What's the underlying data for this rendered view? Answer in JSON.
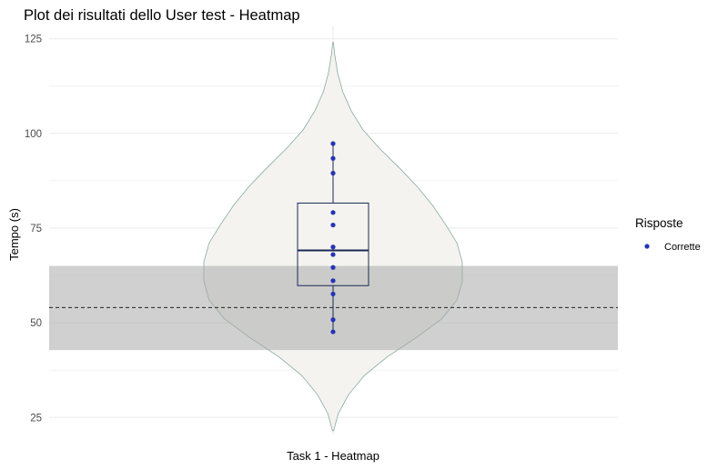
{
  "chart_data": {
    "type": "violin",
    "title": "Plot dei risultati dello User test - Heatmap",
    "xlabel": "",
    "ylabel": "Tempo (s)",
    "categories": [
      "Task 1 - Heatmap"
    ],
    "y_ticks": [
      25,
      50,
      75,
      100,
      125
    ],
    "ylim": [
      20.5,
      128.5
    ],
    "grid": true,
    "legend": {
      "title": "Risposte",
      "position": "right",
      "entries": [
        {
          "label": "Corrette",
          "color": "#2233bb"
        }
      ]
    },
    "points": [
      {
        "category": "Task 1 - Heatmap",
        "y": 97.3,
        "response": "Corrette"
      },
      {
        "category": "Task 1 - Heatmap",
        "y": 93.4,
        "response": "Corrette"
      },
      {
        "category": "Task 1 - Heatmap",
        "y": 89.5,
        "response": "Corrette"
      },
      {
        "category": "Task 1 - Heatmap",
        "y": 79.1,
        "response": "Corrette"
      },
      {
        "category": "Task 1 - Heatmap",
        "y": 75.8,
        "response": "Corrette"
      },
      {
        "category": "Task 1 - Heatmap",
        "y": 70.0,
        "response": "Corrette"
      },
      {
        "category": "Task 1 - Heatmap",
        "y": 68.0,
        "response": "Corrette"
      },
      {
        "category": "Task 1 - Heatmap",
        "y": 64.6,
        "response": "Corrette"
      },
      {
        "category": "Task 1 - Heatmap",
        "y": 61.1,
        "response": "Corrette"
      },
      {
        "category": "Task 1 - Heatmap",
        "y": 57.6,
        "response": "Corrette"
      },
      {
        "category": "Task 1 - Heatmap",
        "y": 50.8,
        "response": "Corrette"
      },
      {
        "category": "Task 1 - Heatmap",
        "y": 47.6,
        "response": "Corrette"
      }
    ],
    "boxplot": {
      "lower_whisker": 47.6,
      "q1": 59.8,
      "median": 69.1,
      "q3": 81.6,
      "upper_whisker": 97.3
    },
    "violin_density": [
      {
        "y": 21.5,
        "w": 0.005
      },
      {
        "y": 26,
        "w": 0.04
      },
      {
        "y": 31,
        "w": 0.12
      },
      {
        "y": 36,
        "w": 0.24
      },
      {
        "y": 41,
        "w": 0.42
      },
      {
        "y": 46,
        "w": 0.64
      },
      {
        "y": 51,
        "w": 0.84
      },
      {
        "y": 56,
        "w": 0.96
      },
      {
        "y": 61,
        "w": 1.0
      },
      {
        "y": 66,
        "w": 1.0
      },
      {
        "y": 71,
        "w": 0.96
      },
      {
        "y": 76,
        "w": 0.87
      },
      {
        "y": 81,
        "w": 0.77
      },
      {
        "y": 86,
        "w": 0.65
      },
      {
        "y": 91,
        "w": 0.51
      },
      {
        "y": 96,
        "w": 0.36
      },
      {
        "y": 101,
        "w": 0.23
      },
      {
        "y": 106,
        "w": 0.14
      },
      {
        "y": 111,
        "w": 0.075
      },
      {
        "y": 116,
        "w": 0.035
      },
      {
        "y": 121,
        "w": 0.012
      },
      {
        "y": 124,
        "w": 0.003
      }
    ],
    "reference_band": {
      "ymin": 42.8,
      "ymax": 65.0,
      "color": "#aaaaaa"
    },
    "reference_line": {
      "y": 54.0,
      "style": "dashed"
    },
    "colors": {
      "violin_fill": "#f4f3ef",
      "violin_stroke": "#8aa8a2",
      "box_stroke": "#1a2a55",
      "median": "#1a2a55",
      "grid": "#ebebeb",
      "band": "#aaaaaa"
    }
  }
}
